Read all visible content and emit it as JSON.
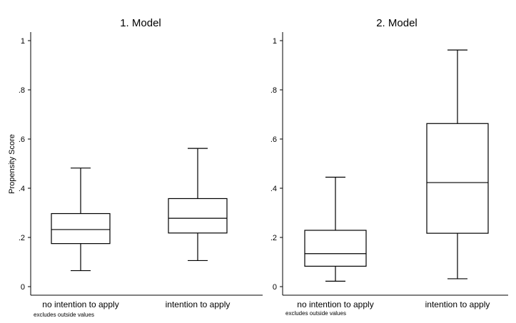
{
  "figure": {
    "ylabel": "Propensity Score",
    "note": "excludes outside values"
  },
  "chart_data": [
    {
      "type": "box",
      "title": "1. Model",
      "ylabel": "Propensity Score",
      "ylim": [
        0,
        1
      ],
      "yticks": [
        0,
        0.2,
        0.4,
        0.6,
        0.8,
        1
      ],
      "ytick_labels": [
        "0",
        ".2",
        ".4",
        ".6",
        ".8",
        "1"
      ],
      "grid": false,
      "categories": [
        "no intention to apply",
        "intention to apply"
      ],
      "boxes": [
        {
          "category": "no intention to apply",
          "whisker_low": 0.065,
          "q1": 0.175,
          "median": 0.232,
          "q3": 0.297,
          "whisker_high": 0.482
        },
        {
          "category": "intention to apply",
          "whisker_low": 0.106,
          "q1": 0.218,
          "median": 0.278,
          "q3": 0.358,
          "whisker_high": 0.562
        }
      ]
    },
    {
      "type": "box",
      "title": "2. Model",
      "ylabel": "",
      "ylim": [
        0,
        1
      ],
      "yticks": [
        0,
        0.2,
        0.4,
        0.6,
        0.8,
        1
      ],
      "ytick_labels": [
        "0",
        ".2",
        ".4",
        ".6",
        ".8",
        "1"
      ],
      "grid": false,
      "categories": [
        "no intention to apply",
        "intention to apply"
      ],
      "boxes": [
        {
          "category": "no intention to apply",
          "whisker_low": 0.022,
          "q1": 0.083,
          "median": 0.134,
          "q3": 0.229,
          "whisker_high": 0.445
        },
        {
          "category": "intention to apply",
          "whisker_low": 0.032,
          "q1": 0.217,
          "median": 0.423,
          "q3": 0.663,
          "whisker_high": 0.962
        }
      ]
    }
  ]
}
